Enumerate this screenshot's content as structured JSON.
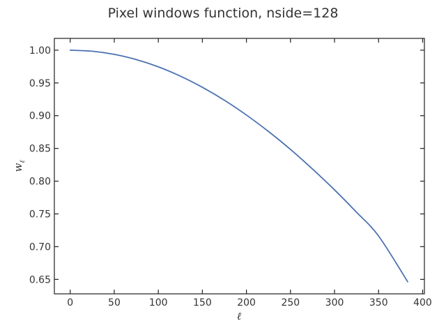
{
  "chart_data": {
    "type": "line",
    "title": "Pixel windows function, nside=128",
    "xlabel": "ℓ",
    "ylabel": {
      "base": "w",
      "subscript": "ℓ"
    },
    "xlim": [
      -18,
      402
    ],
    "ylim": [
      0.628,
      1.018
    ],
    "xticks": [
      0,
      50,
      100,
      150,
      200,
      250,
      300,
      350,
      400
    ],
    "xtick_labels": [
      "0",
      "50",
      "100",
      "150",
      "200",
      "250",
      "300",
      "350",
      "400"
    ],
    "yticks": [
      0.65,
      0.7,
      0.75,
      0.8,
      0.85,
      0.9,
      0.95,
      1.0
    ],
    "ytick_labels": [
      "0.65",
      "0.70",
      "0.75",
      "0.80",
      "0.85",
      "0.90",
      "0.95",
      "1.00"
    ],
    "grid": false,
    "series": [
      {
        "color": "#4c72b0",
        "x": [
          0,
          25,
          50,
          75,
          100,
          125,
          150,
          175,
          200,
          225,
          250,
          275,
          300,
          325,
          350,
          383
        ],
        "y": [
          1.0,
          0.9984,
          0.9936,
          0.9856,
          0.9746,
          0.9604,
          0.9433,
          0.9236,
          0.901,
          0.8759,
          0.8485,
          0.8185,
          0.7867,
          0.7525,
          0.7163,
          0.6465
        ]
      }
    ]
  }
}
